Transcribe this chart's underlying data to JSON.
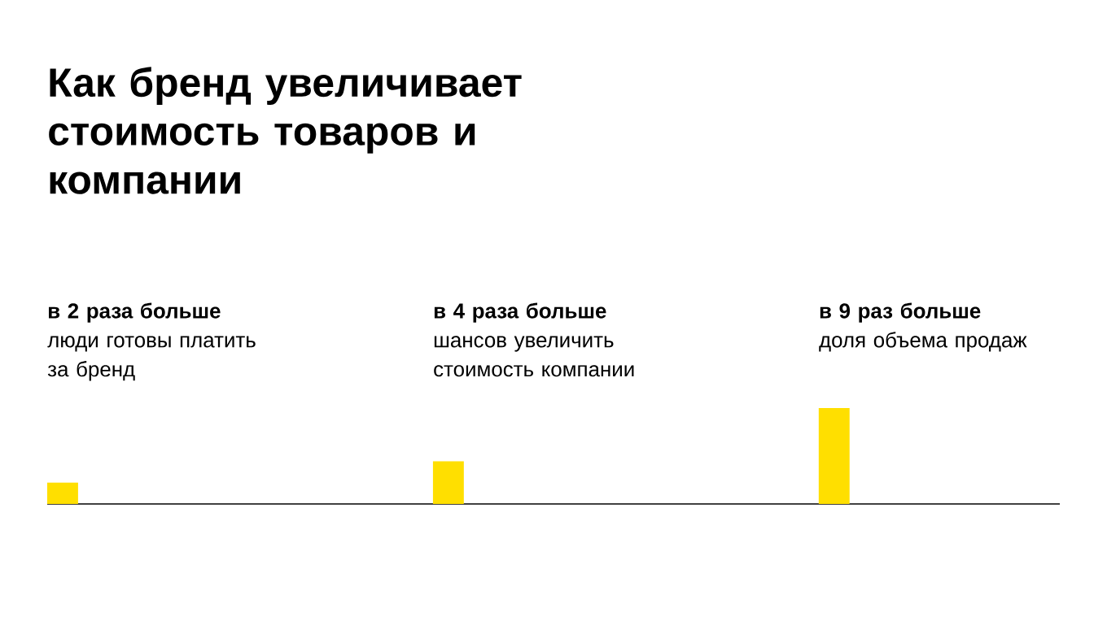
{
  "chart_data": {
    "type": "bar",
    "title": "Как бренд увеличивает стоимость товаров и компании",
    "categories": [
      "люди готовы платить за бренд",
      "шансов увеличить стоимость компании",
      "доля объема продаж"
    ],
    "values": [
      2,
      4,
      9
    ],
    "value_labels": [
      "в 2 раза больше",
      "в 4 раза больше",
      "в 9 раз больше"
    ],
    "color": "#ffdf00"
  }
}
